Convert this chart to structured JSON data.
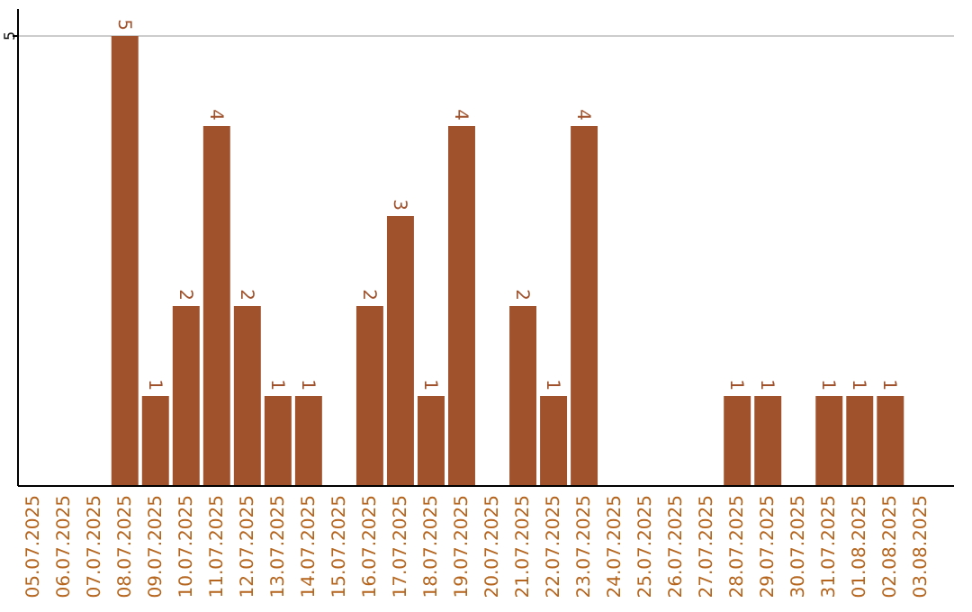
{
  "chart_data": {
    "type": "bar",
    "categories": [
      "05.07.2025",
      "06.07.2025",
      "07.07.2025",
      "08.07.2025",
      "09.07.2025",
      "10.07.2025",
      "11.07.2025",
      "12.07.2025",
      "13.07.2025",
      "14.07.2025",
      "15.07.2025",
      "16.07.2025",
      "17.07.2025",
      "18.07.2025",
      "19.07.2025",
      "20.07.2025",
      "21.07.2025",
      "22.07.2025",
      "23.07.2025",
      "24.07.2025",
      "25.07.2025",
      "26.07.2025",
      "27.07.2025",
      "28.07.2025",
      "29.07.2025",
      "30.07.2025",
      "31.07.2025",
      "01.08.2025",
      "02.08.2025",
      "03.08.2025"
    ],
    "values": [
      0,
      0,
      0,
      5,
      1,
      2,
      4,
      2,
      1,
      1,
      0,
      2,
      3,
      1,
      4,
      0,
      2,
      1,
      4,
      0,
      0,
      0,
      0,
      1,
      1,
      0,
      1,
      1,
      1,
      0
    ],
    "value_labels": [
      null,
      null,
      null,
      "5",
      "1",
      "2",
      "4",
      "2",
      "1",
      "1",
      null,
      "2",
      "3",
      "1",
      "4",
      null,
      "2",
      "1",
      "4",
      null,
      null,
      null,
      null,
      "1",
      "1",
      null,
      "1",
      "1",
      "1",
      null
    ],
    "color": "#a0522d",
    "ylim": [
      0,
      5.3
    ],
    "yticks": [
      5
    ],
    "grid": "y"
  }
}
